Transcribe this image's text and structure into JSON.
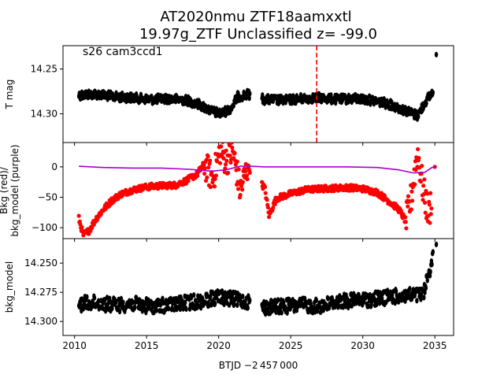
{
  "title_line1": "AT2020nmu  ZTF18aamxxtl",
  "title_line2": "19.97g_ZTF Unclassified z= -99.0",
  "annotation": "s26 cam3ccd1",
  "xlabel": "BTJD −2 457 000",
  "colors": {
    "points": "#000000",
    "bkg": "#ff0000",
    "model": "#aa00cc",
    "marker_line": "#ff0000"
  },
  "chart_data": [
    {
      "type": "scatter",
      "panel": "top",
      "ylabel": "T mag",
      "yticks": [
        "14.25",
        "14.30"
      ],
      "ylim": [
        14.332,
        14.224
      ],
      "y_inverted": true,
      "xlim": [
        2009.2,
        2036.3
      ],
      "vertical_line_x": 2026.8,
      "series": [
        {
          "x": [
            2010.3,
            2011.5,
            2012.8,
            2014.0,
            2015.3,
            2016.5,
            2017.8,
            2018.7,
            2019.5,
            2020.2,
            2020.9,
            2021.3,
            2022.1,
            2023.2,
            2024.5,
            2025.8,
            2027.0,
            2028.2,
            2029.5,
            2030.7,
            2031.8,
            2032.6,
            2033.2,
            2033.8,
            2034.4,
            2034.9,
            2035.1
          ],
          "y": [
            14.279,
            14.278,
            14.281,
            14.282,
            14.284,
            14.283,
            14.285,
            14.29,
            14.297,
            14.3,
            14.293,
            14.281,
            14.278,
            14.284,
            14.285,
            14.283,
            14.282,
            14.284,
            14.283,
            14.285,
            14.289,
            14.294,
            14.298,
            14.302,
            14.285,
            14.275,
            14.234
          ]
        }
      ]
    },
    {
      "type": "scatter",
      "panel": "middle",
      "ylabel": "Bkg (red)/ bkg_model (purple)",
      "yticks": [
        "0",
        "−50",
        "−100"
      ],
      "ylim": [
        -118,
        40
      ],
      "xlim": [
        2009.2,
        2036.3
      ],
      "series": [
        {
          "x": [
            2010.3,
            2010.6,
            2011.0,
            2011.5,
            2012.0,
            2012.6,
            2013.2,
            2014.0,
            2015.0,
            2016.0,
            2017.0,
            2017.8,
            2018.5,
            2019.0,
            2019.6,
            2020.1,
            2020.5,
            2021.0,
            2021.5,
            2022.0,
            2023.2,
            2023.5,
            2024.0,
            2025.0,
            2026.0,
            2027.0,
            2028.0,
            2029.0,
            2030.0,
            2031.0,
            2032.0,
            2032.5,
            2033.0,
            2033.3,
            2033.8,
            2034.2,
            2034.6,
            2035.0
          ],
          "y": [
            -85,
            -112,
            -105,
            -85,
            -70,
            -55,
            -45,
            -38,
            -33,
            -31,
            -30,
            -22,
            -12,
            5,
            -20,
            28,
            10,
            25,
            -40,
            0,
            -35,
            -80,
            -52,
            -44,
            -38,
            -36,
            -35,
            -34,
            -36,
            -42,
            -60,
            -70,
            -90,
            -60,
            25,
            -40,
            -80,
            0
          ]
        },
        {
          "name": "bkg_model",
          "x": [
            2010.3,
            2012.0,
            2014.0,
            2016.0,
            2018.0,
            2019.5,
            2020.5,
            2021.5,
            2022.2,
            2023.2,
            2025.0,
            2027.0,
            2029.0,
            2031.0,
            2032.5,
            2033.5,
            2034.3,
            2034.8,
            2035.1
          ],
          "y": [
            1,
            -1,
            -2,
            -2,
            -4,
            -7,
            -5,
            1,
            1,
            0,
            0,
            0,
            0,
            -1,
            -5,
            -10,
            -9,
            -1,
            0
          ]
        }
      ]
    },
    {
      "type": "scatter",
      "panel": "bottom",
      "ylabel": "bkg_model",
      "yticks": [
        "14.250",
        "14.275",
        "14.300"
      ],
      "ylim": [
        14.312,
        14.229
      ],
      "y_inverted": true,
      "xlim": [
        2009.2,
        2036.3
      ],
      "xticks": [
        "2010",
        "2015",
        "2020",
        "2025",
        "2030",
        "2035"
      ],
      "series": [
        {
          "x": [
            2010.3,
            2011.5,
            2012.8,
            2014.0,
            2015.3,
            2016.5,
            2017.8,
            2019.0,
            2020.0,
            2021.0,
            2022.1,
            2023.2,
            2024.5,
            2025.8,
            2027.0,
            2028.2,
            2029.5,
            2030.7,
            2031.8,
            2033.0,
            2034.2,
            2035.1
          ],
          "y": [
            14.285,
            14.284,
            14.286,
            14.285,
            14.287,
            14.286,
            14.284,
            14.282,
            14.279,
            14.281,
            14.283,
            14.288,
            14.287,
            14.286,
            14.287,
            14.283,
            14.282,
            14.281,
            14.279,
            14.278,
            14.277,
            14.234
          ]
        }
      ]
    }
  ]
}
